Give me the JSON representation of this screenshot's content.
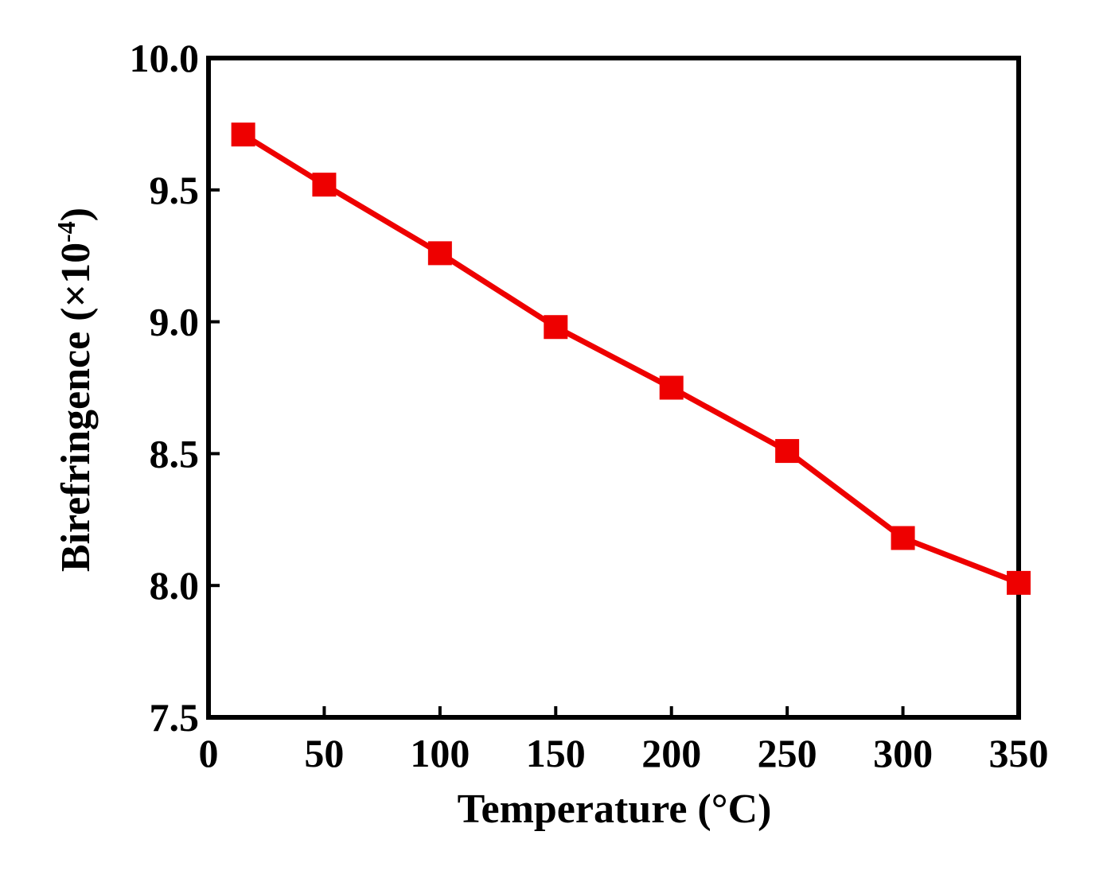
{
  "chart_data": {
    "type": "line",
    "title": "",
    "xlabel": "Temperature (°C)",
    "ylabel_main": "Birefringence (×10",
    "ylabel_exp": "-4",
    "ylabel_close": ")",
    "xlim": [
      0,
      350
    ],
    "ylim": [
      7.5,
      10.0
    ],
    "xticks": [
      0,
      50,
      100,
      150,
      200,
      250,
      300,
      350
    ],
    "xtick_labels": [
      "0",
      "50",
      "100",
      "150",
      "200",
      "250",
      "300",
      "350"
    ],
    "yticks": [
      7.5,
      8.0,
      8.5,
      9.0,
      9.5,
      10.0
    ],
    "ytick_labels": [
      "7.5",
      "8.0",
      "8.5",
      "9.0",
      "9.5",
      "10.0"
    ],
    "grid": false,
    "series": [
      {
        "name": "Birefringence",
        "color": "#ee0000",
        "marker": "square",
        "x": [
          15,
          50,
          100,
          150,
          200,
          250,
          300,
          350
        ],
        "y": [
          9.71,
          9.52,
          9.26,
          8.98,
          8.75,
          8.51,
          8.18,
          8.01
        ]
      }
    ]
  }
}
